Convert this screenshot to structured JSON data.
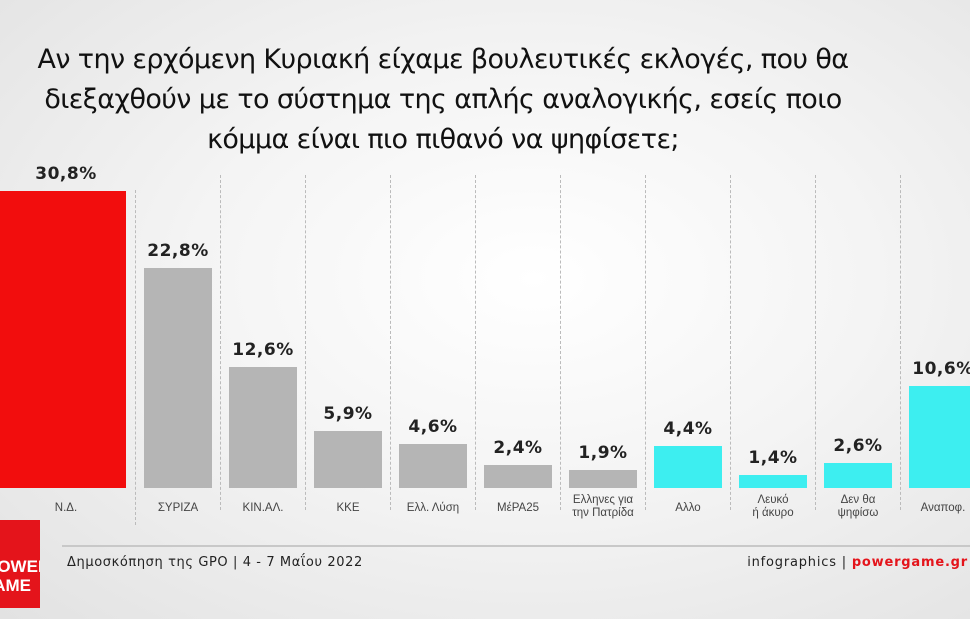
{
  "title": {
    "lines": [
      "Αν την ερχόμενη Κυριακή είχαμε βουλευτικές εκλογές, που θα",
      "διεξαχθούν με το σύστημα της απλής αναλογικής, εσείς ποιο",
      "κόμμα είναι πιο πιθανό να ψηφίσετε;"
    ]
  },
  "chart_data": {
    "type": "bar",
    "title": "Αν την ερχόμενη Κυριακή είχαμε βουλευτικές εκλογές, που θα διεξαχθούν με το σύστημα της απλής αναλογικής, εσείς ποιο κόμμα είναι πιο πιθανό να ψηφίσετε;",
    "xlabel": "",
    "ylabel": "",
    "ylim": [
      0,
      32
    ],
    "grid": false,
    "categories": [
      "Ν.Δ.",
      "ΣΥΡΙΖΑ",
      "ΚΙΝ.ΑΛ.",
      "ΚΚΕ",
      "Ελλ. Λύση",
      "ΜέΡΑ25",
      "Ελληνες για την Πατρίδα",
      "Αλλο",
      "Λευκό ή άκυρο",
      "Δεν θα ψηφίσω",
      "Αναποφ."
    ],
    "category_lines": [
      [
        "Ν.Δ."
      ],
      [
        "ΣΥΡΙΖΑ"
      ],
      [
        "ΚΙΝ.ΑΛ."
      ],
      [
        "ΚΚΕ"
      ],
      [
        "Ελλ. Λύση"
      ],
      [
        "ΜέΡΑ25"
      ],
      [
        "Ελληνες για",
        "την Πατρίδα"
      ],
      [
        "Αλλο"
      ],
      [
        "Λευκό",
        "ή άκυρο"
      ],
      [
        "Δεν θα",
        "ψηφίσω"
      ],
      [
        "Αναποφ."
      ]
    ],
    "values": [
      30.8,
      22.8,
      12.6,
      5.9,
      4.6,
      2.4,
      1.9,
      4.4,
      1.4,
      2.6,
      10.6
    ],
    "value_labels": [
      "30,8%",
      "22,8%",
      "12,6%",
      "5,9%",
      "4,6%",
      "2,4%",
      "1,9%",
      "4,4%",
      "1,4%",
      "2,6%",
      "10,6%"
    ],
    "colors": [
      "#f20d0d",
      "#b5b5b5",
      "#b5b5b5",
      "#b5b5b5",
      "#b5b5b5",
      "#b5b5b5",
      "#b5b5b5",
      "#3deef0",
      "#3deef0",
      "#3deef0",
      "#3deef0"
    ]
  },
  "footer": {
    "source": "Δημοσκόπηση της GPO | 4 - 7 Μαΐου 2022",
    "credit_prefix": "infographics | ",
    "credit_site": "powergame.gr"
  },
  "logo": {
    "text": [
      "POWER",
      "GAME"
    ]
  }
}
